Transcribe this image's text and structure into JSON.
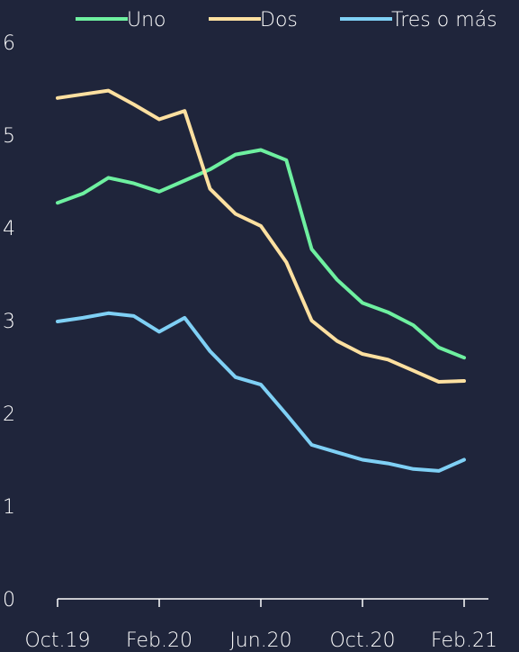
{
  "chart_data": {
    "type": "line",
    "title": "",
    "xlabel": "",
    "ylabel": "",
    "ylim": [
      0,
      6
    ],
    "yticks": [
      0,
      1,
      2,
      3,
      4,
      5,
      6
    ],
    "x": [
      "Oct.19",
      "Nov.19",
      "Dic.19",
      "Ene.20",
      "Feb.20",
      "Mar.20",
      "Abr.20",
      "May.20",
      "Jun.20",
      "Jul.20",
      "Ago.20",
      "Sep.20",
      "Oct.20",
      "Nov.20",
      "Dic.20",
      "Ene.21",
      "Feb.21"
    ],
    "xtick_labels": [
      "Oct.19",
      "Feb.20",
      "Jun.20",
      "Oct.20",
      "Feb.21"
    ],
    "grid": false,
    "legend_position": "top",
    "series": [
      {
        "name": "Uno",
        "color": "#6ef0a0",
        "values": [
          4.27,
          4.37,
          4.54,
          4.48,
          4.39,
          4.51,
          4.63,
          4.79,
          4.84,
          4.73,
          3.77,
          3.44,
          3.19,
          3.09,
          2.95,
          2.71,
          2.6
        ]
      },
      {
        "name": "Dos",
        "color": "#fde0a0",
        "values": [
          5.4,
          5.44,
          5.48,
          5.33,
          5.17,
          5.26,
          4.42,
          4.15,
          4.02,
          3.63,
          3.0,
          2.78,
          2.64,
          2.58,
          2.46,
          2.34,
          2.35
        ]
      },
      {
        "name": "Tres o más",
        "color": "#7fd0f5",
        "values": [
          2.99,
          3.03,
          3.08,
          3.05,
          2.88,
          3.03,
          2.67,
          2.39,
          2.31,
          1.99,
          1.66,
          1.58,
          1.5,
          1.46,
          1.4,
          1.38,
          1.5
        ]
      }
    ]
  }
}
